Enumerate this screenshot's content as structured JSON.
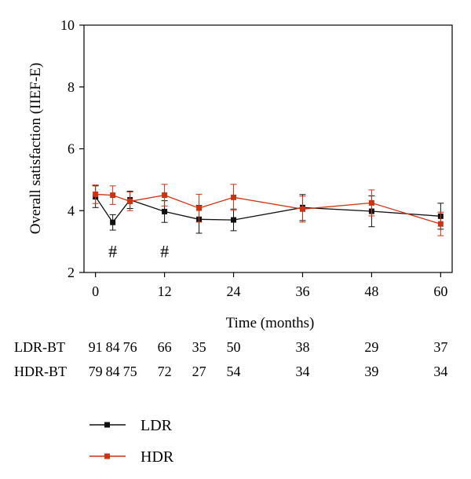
{
  "chart_data": {
    "type": "line",
    "ylabel": "Overall satisfaction (IIEF-E)",
    "xlabel": "Time (months)",
    "xlim": [
      -2,
      62
    ],
    "ylim": [
      2,
      10
    ],
    "x_ticks": [
      0,
      12,
      24,
      36,
      48,
      60
    ],
    "x_tick_labels": [
      "0",
      "12",
      "24",
      "36",
      "48",
      "60"
    ],
    "y_ticks": [
      2,
      4,
      6,
      8,
      10
    ],
    "y_tick_labels": [
      "2",
      "4",
      "6",
      "8",
      "10"
    ],
    "grid": false,
    "series": [
      {
        "name": "LDR",
        "color": "#111111",
        "x": [
          0,
          3,
          6,
          12,
          18,
          24,
          36,
          48,
          60
        ],
        "values": [
          4.45,
          3.62,
          4.35,
          3.97,
          3.72,
          3.7,
          4.1,
          3.98,
          3.82
        ],
        "error": [
          0.35,
          0.25,
          0.28,
          0.35,
          0.45,
          0.35,
          0.42,
          0.5,
          0.42
        ]
      },
      {
        "name": "HDR",
        "color": "#cc3311",
        "x": [
          0,
          3,
          6,
          12,
          18,
          24,
          36,
          48,
          60
        ],
        "values": [
          4.53,
          4.5,
          4.3,
          4.5,
          4.08,
          4.43,
          4.05,
          4.25,
          3.57
        ],
        "error": [
          0.3,
          0.3,
          0.3,
          0.35,
          0.45,
          0.42,
          0.42,
          0.42,
          0.38
        ]
      }
    ],
    "annotations": [
      {
        "text": "#",
        "x": 3,
        "y": 2.7
      },
      {
        "text": "#",
        "x": 12,
        "y": 2.7
      }
    ],
    "legend_position": "bottom-left",
    "risk_table": {
      "rows": [
        {
          "label": "LDR-BT",
          "values": [
            "91",
            "84",
            "76",
            "66",
            "35",
            "50",
            "38",
            "29",
            "37"
          ]
        },
        {
          "label": "HDR-BT",
          "values": [
            "79",
            "84",
            "75",
            "72",
            "27",
            "54",
            "34",
            "39",
            "34"
          ]
        }
      ]
    }
  }
}
